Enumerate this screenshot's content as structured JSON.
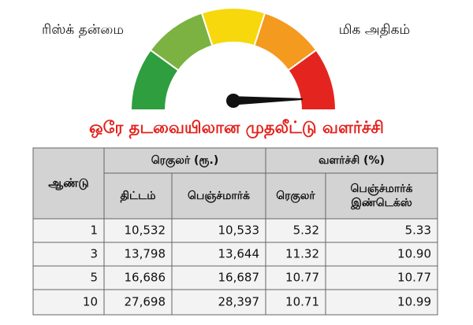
{
  "gauge": {
    "left_label": "ரிஸ்க் தன்மை",
    "right_label": "மிக அதிகம்"
  },
  "title": "ஒரே தடவையிலான முதலீட்டு வளர்ச்சி",
  "table": {
    "year_header": "ஆண்டு",
    "group_headers": [
      "ரெகுலர் (ரூ.)",
      "வளர்ச்சி (%)"
    ],
    "sub_headers": [
      "திட்டம்",
      "பெஞ்ச்மார்க்",
      "ரெகுலர்",
      "பெஞ்ச்மார்க் இண்டெக்ஸ்"
    ],
    "rows": [
      [
        "1",
        "10,532",
        "10,533",
        "5.32",
        "5.33"
      ],
      [
        "3",
        "13,798",
        "13,644",
        "11.32",
        "10.90"
      ],
      [
        "5",
        "16,686",
        "16,687",
        "10.77",
        "10.77"
      ],
      [
        "10",
        "27,698",
        "28,397",
        "10.71",
        "10.99"
      ]
    ]
  }
}
